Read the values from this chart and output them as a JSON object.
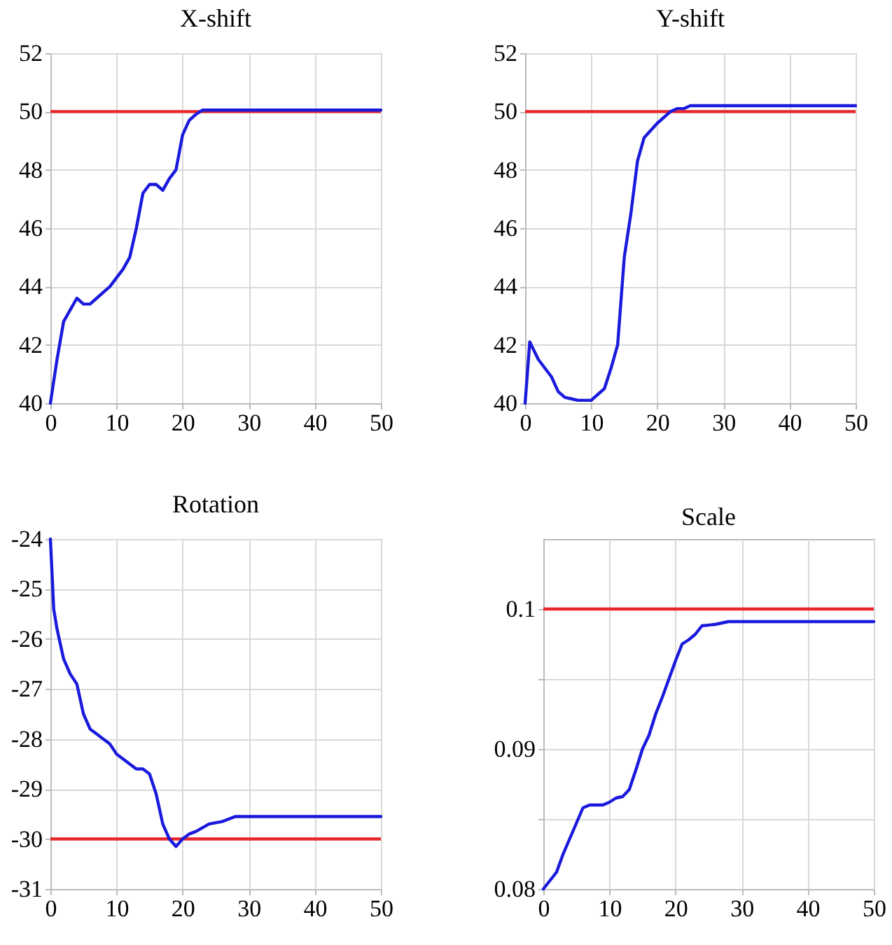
{
  "chart_data": [
    {
      "type": "line",
      "title": "X-shift",
      "xlim": [
        0,
        50
      ],
      "xticks": [
        0,
        10,
        20,
        30,
        40,
        50
      ],
      "ylim": [
        40,
        52
      ],
      "yticks": [
        40,
        42,
        44,
        46,
        48,
        50,
        52
      ],
      "grid": true,
      "ref_lines": [
        {
          "axis": "y",
          "value": 50,
          "color": "#e8262a"
        }
      ],
      "series": [
        {
          "color": "#1a1adc",
          "x": [
            0,
            1,
            2,
            3,
            4,
            5,
            6,
            7,
            8,
            9,
            10,
            11,
            12,
            13,
            14,
            15,
            16,
            17,
            18,
            19,
            20,
            21,
            22,
            23,
            24,
            50
          ],
          "values": [
            40,
            41.5,
            42.8,
            43.2,
            43.6,
            43.4,
            43.4,
            43.6,
            43.8,
            44,
            44.3,
            44.6,
            45,
            46,
            47.2,
            47.5,
            47.5,
            47.3,
            47.7,
            48,
            49.2,
            49.7,
            49.9,
            50.05,
            50.05,
            50.05
          ]
        }
      ]
    },
    {
      "type": "line",
      "title": "Y-shift",
      "xlim": [
        0,
        50
      ],
      "xticks": [
        0,
        10,
        20,
        30,
        40,
        50
      ],
      "ylim": [
        40,
        52
      ],
      "yticks": [
        40,
        42,
        44,
        46,
        48,
        50,
        52
      ],
      "grid": true,
      "ref_lines": [
        {
          "axis": "y",
          "value": 50,
          "color": "#e8262a"
        }
      ],
      "series": [
        {
          "color": "#1a1adc",
          "x": [
            0,
            0.7,
            2,
            3,
            4,
            5,
            6,
            7,
            8,
            10,
            11,
            12,
            13,
            14,
            15,
            16,
            17,
            18,
            20,
            22,
            23,
            24,
            25,
            50
          ],
          "values": [
            40,
            42.1,
            41.5,
            41.2,
            40.9,
            40.4,
            40.2,
            40.15,
            40.1,
            40.1,
            40.3,
            40.5,
            41.2,
            42,
            45,
            46.5,
            48.3,
            49.1,
            49.6,
            50,
            50.1,
            50.1,
            50.2,
            50.2
          ]
        }
      ]
    },
    {
      "type": "line",
      "title": "Rotation",
      "xlim": [
        0,
        50
      ],
      "xticks": [
        0,
        10,
        20,
        30,
        40,
        50
      ],
      "ylim": [
        -31,
        -24
      ],
      "yticks": [
        -31,
        -30,
        -29,
        -28,
        -27,
        -26,
        -25,
        -24
      ],
      "grid": true,
      "ref_lines": [
        {
          "axis": "y",
          "value": -30,
          "color": "#e8262a"
        }
      ],
      "series": [
        {
          "color": "#1a1adc",
          "x": [
            0,
            0.5,
            1,
            2,
            3,
            4,
            5,
            6,
            7,
            8,
            9,
            10,
            11,
            12,
            13,
            14,
            15,
            16,
            17,
            18,
            19,
            20,
            21,
            22,
            24,
            26,
            27,
            28,
            50
          ],
          "values": [
            -24,
            -25.4,
            -25.8,
            -26.4,
            -26.7,
            -26.9,
            -27.5,
            -27.8,
            -27.9,
            -28,
            -28.1,
            -28.3,
            -28.4,
            -28.5,
            -28.6,
            -28.6,
            -28.7,
            -29.1,
            -29.7,
            -30,
            -30.15,
            -30,
            -29.9,
            -29.85,
            -29.7,
            -29.65,
            -29.6,
            -29.55,
            -29.55
          ]
        }
      ]
    },
    {
      "type": "line",
      "title": "Scale",
      "xlim": [
        0,
        50
      ],
      "xticks": [
        0,
        10,
        20,
        30,
        40,
        50
      ],
      "ylim": [
        0.08,
        0.105
      ],
      "yticks": [
        0.08,
        {
          "value": 0.085,
          "label": null
        },
        0.09,
        {
          "value": 0.095,
          "label": null
        },
        0.1
      ],
      "grid": true,
      "ref_lines": [
        {
          "axis": "y",
          "value": 0.1,
          "color": "#e8262a"
        }
      ],
      "series": [
        {
          "color": "#1a1adc",
          "x": [
            0,
            1,
            2,
            3,
            4,
            5,
            6,
            7,
            9,
            10,
            11,
            12,
            13,
            14,
            15,
            16,
            17,
            18,
            19,
            20,
            21,
            22,
            23,
            24,
            26,
            27,
            28,
            50
          ],
          "values": [
            0.08,
            0.0806,
            0.0812,
            0.0825,
            0.0836,
            0.0847,
            0.0858,
            0.086,
            0.086,
            0.0862,
            0.0865,
            0.0866,
            0.0871,
            0.0885,
            0.09,
            0.091,
            0.0925,
            0.0937,
            0.095,
            0.0963,
            0.0975,
            0.0978,
            0.0982,
            0.0988,
            0.0989,
            0.099,
            0.0991,
            0.0991
          ]
        }
      ]
    }
  ]
}
